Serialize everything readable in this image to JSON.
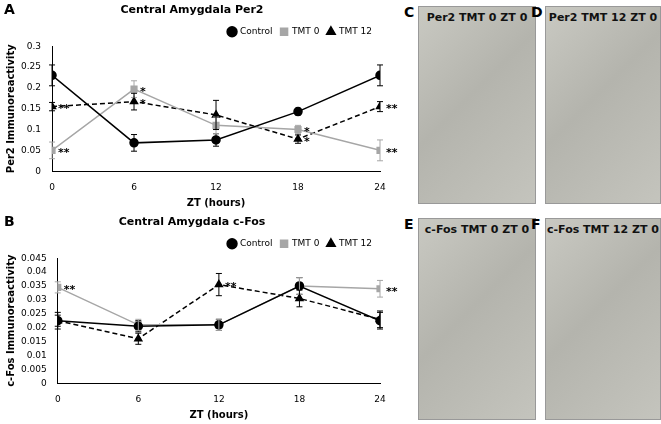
{
  "chart_data": [
    {
      "type": "line",
      "panel_label": "A",
      "title": "Central Amygdala Per2",
      "x_label": "ZT (hours)",
      "y_label": "Per2 Immunoreactivity",
      "x": [
        0,
        6,
        12,
        18,
        24
      ],
      "xlim": [
        0,
        24
      ],
      "xticks": [
        0,
        6,
        12,
        18,
        24
      ],
      "ylim": [
        0,
        0.3
      ],
      "yticks": [
        0,
        0.05,
        0.1,
        0.15,
        0.2,
        0.25,
        0.3
      ],
      "grid": false,
      "legend": "upper right",
      "series": [
        {
          "name": "Control",
          "color": "#000000",
          "marker": "circle",
          "line_style": "solid",
          "values": [
            0.23,
            0.068,
            0.075,
            0.143,
            0.23
          ],
          "errors": [
            0.025,
            0.02,
            0.015,
            0.008,
            0.025
          ],
          "annotations": [
            null,
            null,
            null,
            null,
            null
          ]
        },
        {
          "name": "TMT 0",
          "color": "#a6a6a6",
          "marker": "square",
          "line_style": "solid",
          "values": [
            0.05,
            0.197,
            0.11,
            0.1,
            0.05
          ],
          "errors": [
            0.02,
            0.02,
            0.02,
            0.01,
            0.025
          ],
          "annotations": [
            "**",
            "*",
            null,
            "*",
            "**"
          ]
        },
        {
          "name": "TMT 12",
          "color": "#000000",
          "marker": "triangle",
          "line_style": "dashed",
          "values": [
            0.155,
            0.167,
            0.135,
            0.077,
            0.155
          ],
          "errors": [
            0.01,
            0.02,
            0.035,
            0.01,
            0.012
          ],
          "annotations": [
            "**",
            "*",
            null,
            "*",
            "**"
          ]
        }
      ]
    },
    {
      "type": "line",
      "panel_label": "B",
      "title": "Central Amygdala c-Fos",
      "x_label": "ZT (hours)",
      "y_label": "c-Fos Immunoreactivity",
      "x": [
        0,
        6,
        12,
        18,
        24
      ],
      "xlim": [
        0,
        24
      ],
      "xticks": [
        0,
        6,
        12,
        18,
        24
      ],
      "ylim": [
        0,
        0.045
      ],
      "yticks": [
        0,
        0.005,
        0.01,
        0.015,
        0.02,
        0.025,
        0.03,
        0.035,
        0.04,
        0.045
      ],
      "grid": false,
      "legend": "upper right",
      "series": [
        {
          "name": "Control",
          "color": "#000000",
          "marker": "circle",
          "line_style": "solid",
          "values": [
            0.0225,
            0.0205,
            0.021,
            0.035,
            0.0225
          ],
          "errors": [
            0.002,
            0.002,
            0.002,
            0.003,
            0.003
          ],
          "annotations": [
            null,
            null,
            null,
            null,
            null
          ]
        },
        {
          "name": "TMT 0",
          "color": "#a6a6a6",
          "marker": "square",
          "line_style": "solid",
          "values": [
            0.0345,
            0.021,
            0.021,
            0.035,
            0.034
          ],
          "errors": [
            0.002,
            0.002,
            0.002,
            0.003,
            0.003
          ],
          "annotations": [
            "**",
            null,
            null,
            null,
            "**"
          ]
        },
        {
          "name": "TMT 12",
          "color": "#000000",
          "marker": "triangle",
          "line_style": "dashed",
          "values": [
            0.0225,
            0.016,
            0.0355,
            0.0305,
            0.023
          ],
          "errors": [
            0.003,
            0.002,
            0.004,
            0.003,
            0.003
          ],
          "annotations": [
            null,
            null,
            "**",
            null,
            null
          ]
        }
      ]
    }
  ],
  "images": [
    {
      "panel_label": "C",
      "title": "Per2 TMT 0 ZT 0"
    },
    {
      "panel_label": "D",
      "title": "Per2 TMT 12 ZT 0"
    },
    {
      "panel_label": "E",
      "title": "c-Fos TMT 0 ZT 0"
    },
    {
      "panel_label": "F",
      "title": "c-Fos TMT 12 ZT 0"
    }
  ]
}
